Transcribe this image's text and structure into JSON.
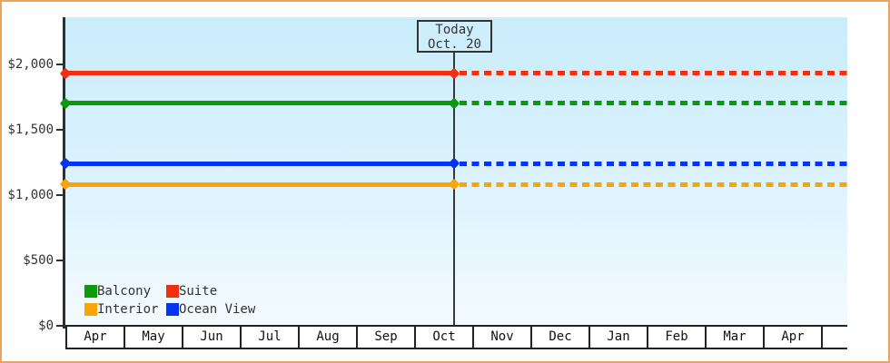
{
  "colors": {
    "frame_border": "#e9a35b",
    "plot_bg_top": "#c9ecfb",
    "plot_bg_bottom": "#f3fbff",
    "axis": "#2f2f2f",
    "text": "#333333",
    "balcony_green": "#0a9a0a",
    "suite_red": "#f23010",
    "interior_orange": "#fba405",
    "ocean_view_blue": "#0634f5"
  },
  "chart_data": {
    "type": "line",
    "title": "",
    "description": "Cabin price history: constant price lines per cabin category, solid up to today then dashed (projected) to the right",
    "x_axis": {
      "categories": [
        "Apr",
        "May",
        "Jun",
        "Jul",
        "Aug",
        "Sep",
        "Oct",
        "Nov",
        "Dec",
        "Jan",
        "Feb",
        "Mar",
        "Apr"
      ],
      "grid": false
    },
    "y_axis": {
      "ticks": [
        {
          "label": "$0",
          "value": 0
        },
        {
          "label": "$500",
          "value": 500
        },
        {
          "label": "$1,000",
          "value": 1000
        },
        {
          "label": "$1,500",
          "value": 1500
        },
        {
          "label": "$2,000",
          "value": 2000
        }
      ],
      "range": [
        0,
        2360
      ],
      "grid": false
    },
    "series": [
      {
        "name": "Suite",
        "color": "#f23010",
        "value": 1929,
        "solid_until_today": true,
        "dashed_after_today": true
      },
      {
        "name": "Balcony",
        "color": "#0a9a0a",
        "value": 1699,
        "solid_until_today": true,
        "dashed_after_today": true
      },
      {
        "name": "Ocean View",
        "color": "#0634f5",
        "value": 1239,
        "solid_until_today": true,
        "dashed_after_today": true
      },
      {
        "name": "Interior",
        "color": "#fba405",
        "value": 1079,
        "solid_until_today": true,
        "dashed_after_today": true
      }
    ],
    "today": {
      "line1": "Today",
      "line2": "Oct. 20",
      "month": "Oct",
      "day": 20
    },
    "legend": {
      "position": "bottom-left",
      "items": [
        {
          "label": "Balcony",
          "color": "#0a9a0a"
        },
        {
          "label": "Suite",
          "color": "#f23010"
        },
        {
          "label": "Interior",
          "color": "#fba405"
        },
        {
          "label": "Ocean View",
          "color": "#0634f5"
        }
      ]
    }
  }
}
